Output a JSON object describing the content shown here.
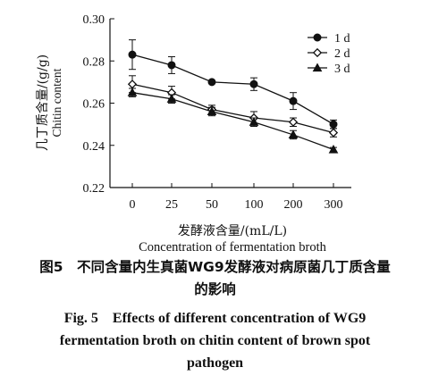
{
  "chart_data": {
    "type": "line",
    "categories": [
      "0",
      "25",
      "50",
      "100",
      "200",
      "300"
    ],
    "series": [
      {
        "name": "1 d",
        "marker": "filled-circle",
        "values": [
          0.283,
          0.278,
          0.27,
          0.269,
          0.261,
          0.25
        ],
        "errors": [
          0.007,
          0.004,
          0.0,
          0.003,
          0.004,
          0.002
        ]
      },
      {
        "name": "2 d",
        "marker": "open-diamond",
        "values": [
          0.269,
          0.265,
          0.257,
          0.253,
          0.251,
          0.246
        ],
        "errors": [
          0.004,
          0.003,
          0.002,
          0.003,
          0.002,
          0.002
        ]
      },
      {
        "name": "3 d",
        "marker": "filled-triangle",
        "values": [
          0.265,
          0.262,
          0.256,
          0.251,
          0.245,
          0.238
        ],
        "errors": [
          0.002,
          0.002,
          0.002,
          0.002,
          0.002,
          0.001
        ]
      }
    ],
    "ylim": [
      0.22,
      0.3
    ],
    "yticks": [
      "0.22",
      "0.24",
      "0.26",
      "0.28",
      "0.30"
    ],
    "ylabel_cn": "几丁质含量/(g/g)",
    "ylabel_en": "Chitin content",
    "xlabel_cn": "发酵液含量/(mL/L)",
    "xlabel_en": "Concentration of fermentation broth",
    "legend_position": "top-right",
    "grid": false
  },
  "caption": {
    "cn_line1": "图5　不同含量内生真菌WG9发酵液对病原菌几丁质含量",
    "cn_line2": "的影响",
    "en_line1": "Fig. 5　Effects of different concentration of WG9",
    "en_line2": "fermentation broth on chitin content of brown spot",
    "en_line3": "pathogen"
  },
  "colors": {
    "ink": "#111111",
    "background": "#ffffff"
  }
}
